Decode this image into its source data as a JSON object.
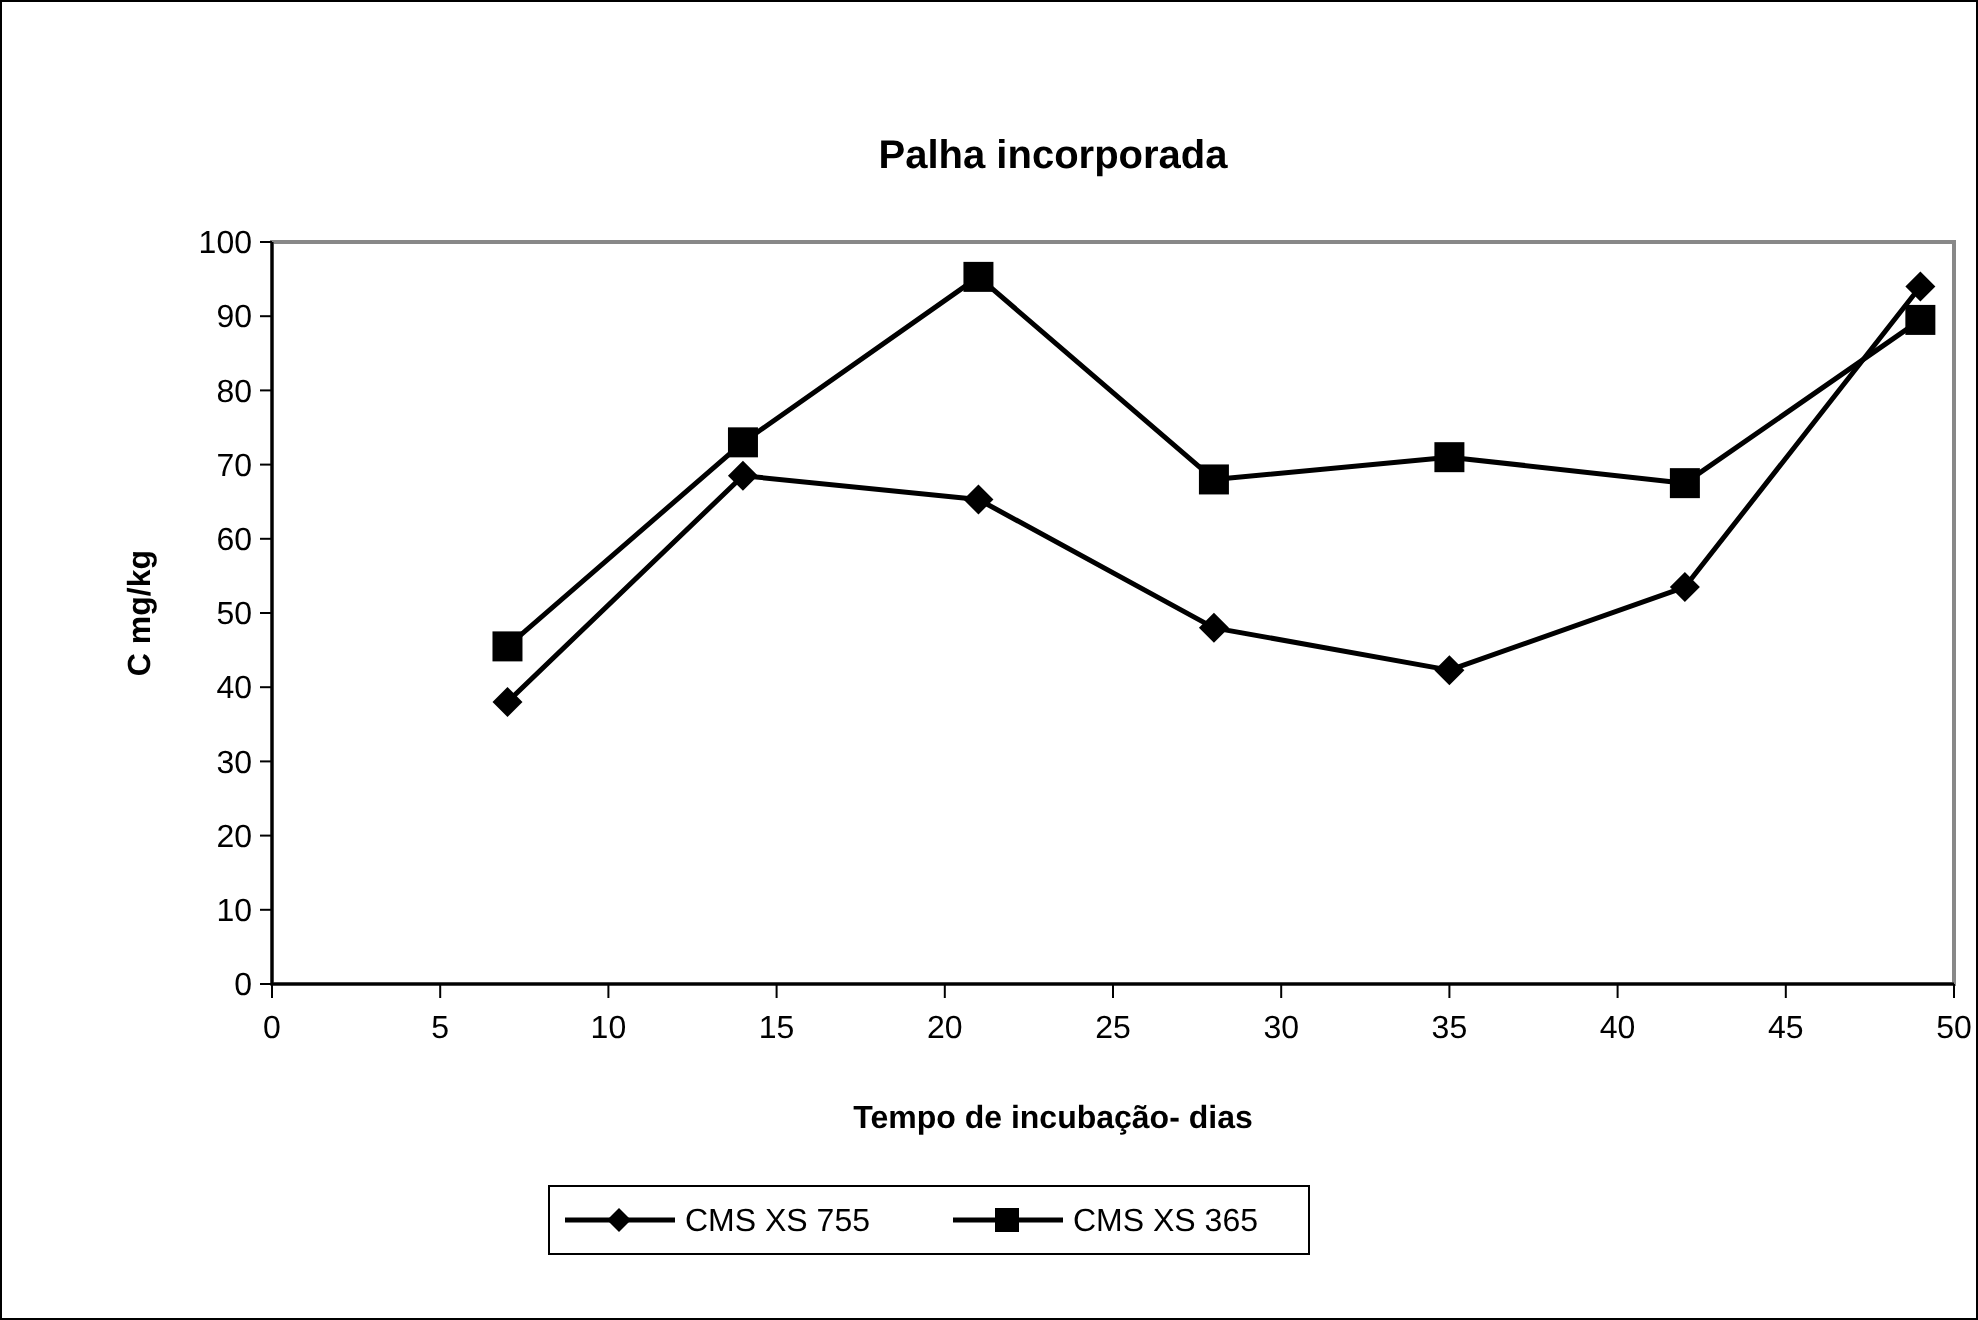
{
  "chart_data": {
    "type": "line",
    "title": "Palha incorporada",
    "xlabel": "Tempo de incubação- dias",
    "ylabel": "C mg/kg",
    "x": [
      7,
      14,
      21,
      28,
      35,
      42,
      49
    ],
    "series": [
      {
        "name": "CMS XS 755",
        "color": "#000000",
        "marker": "diamond",
        "values": [
          38,
          68.5,
          65.3,
          48,
          42.3,
          53.5,
          94
        ]
      },
      {
        "name": "CMS XS 365",
        "color": "#000000",
        "marker": "square",
        "values": [
          45.5,
          73,
          95.3,
          68,
          71,
          67.5,
          89.5
        ]
      }
    ],
    "xlim": [
      0,
      50
    ],
    "xticks": [
      0,
      5,
      10,
      15,
      20,
      25,
      30,
      35,
      40,
      45,
      50
    ],
    "ylim": [
      0,
      100
    ],
    "yticks": [
      0,
      10,
      20,
      30,
      40,
      50,
      60,
      70,
      80,
      90,
      100
    ],
    "grid": false,
    "legend": "bottom",
    "line_style": "solid"
  }
}
